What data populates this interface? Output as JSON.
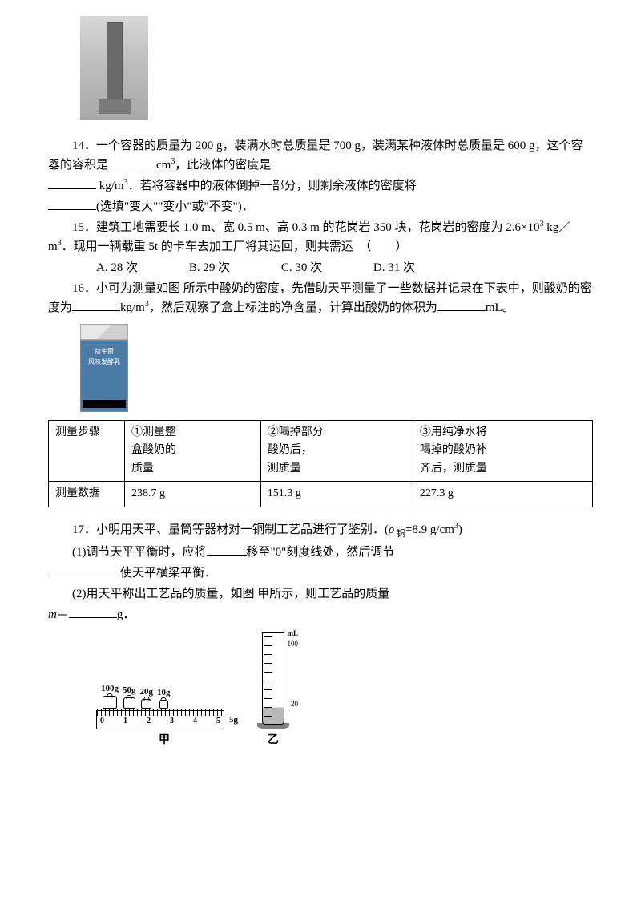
{
  "q14": {
    "text_a": "14．一个容器的质量为 200 g，装满水时总质量是 700 g，装满某种液体时总质量是 600 g，这个容器的容积是",
    "unit1": "cm",
    "sup1": "3",
    "text_b": "，此液体的密度是",
    "unit2": " kg/m",
    "sup2": "3",
    "text_c": "．若将容器中的液体倒掉一部分，则剩余液体的密度将",
    "text_d": "(选填\"变大\"\"变小\"或\"不变\")．"
  },
  "q15": {
    "text_a": "15．建筑工地需要长 1.0 m、宽 0.5 m、高 0.3 m 的花岗岩 350 块，花岗岩的密度为 2.6×10",
    "sup1": "3",
    "text_b": " kg／m",
    "sup2": "3",
    "text_c": "．现用一辆载重 5t 的卡车去加工厂将其运回，则共需运　（　　）",
    "options": {
      "a": "A. 28 次",
      "b": "B. 29 次",
      "c": "C. 30 次",
      "d": "D. 31 次"
    }
  },
  "q16": {
    "text_a": "16．小可为测量如图 所示中酸奶的密度，先借助天平测量了一些数据并记录在下表中，则酸奶的密度为",
    "unit1": "kg/m",
    "sup1": "3",
    "text_b": "，然后观察了盒上标注的净含量，计算出酸奶的体积为",
    "unit2": "mL。",
    "yogurt_label1": "益生菌",
    "yogurt_label2": "风味发酵乳"
  },
  "table": {
    "h1": "测量步骤",
    "h2a": "①测量整",
    "h2b": "盒酸奶的",
    "h2c": "质量",
    "h3a": "②喝掉部分",
    "h3b": "酸奶后，",
    "h3c": "测质量",
    "h4a": "③用纯净水将",
    "h4b": "喝掉的酸奶补",
    "h4c": "齐后，测质量",
    "r1": "测量数据",
    "d1": "238.7 g",
    "d2": "151.3 g",
    "d3": "227.3 g"
  },
  "q17": {
    "text_a": "17．小明用天平、量筒等器材对一铜制工艺品进行了鉴别．(",
    "rho": "ρ",
    "rho_sub": " 铜",
    "text_b": "=8.9 g/cm",
    "sup1": "3",
    "text_c": ")",
    "p1a": "(1)调节天平平衡时，应将",
    "p1b": "移至\"0\"刻度线处，然后调节",
    "p1c": "使天平横梁平衡．",
    "p2a": "(2)用天平称出工艺品的质量，如图 甲所示，则工艺品的质量",
    "m": "m",
    "p2b": "＝",
    "p2c": "g．"
  },
  "fig": {
    "w1": "100g",
    "w2": "50g",
    "w3": "20g",
    "w4": "10g",
    "r0": "0",
    "r1": "1",
    "r2": "2",
    "r3": "3",
    "r4": "4",
    "r5": "5",
    "rg": "5g",
    "label_a": "甲",
    "label_b": "乙",
    "ml": "mL",
    "c100": "100",
    "c20": "20"
  }
}
